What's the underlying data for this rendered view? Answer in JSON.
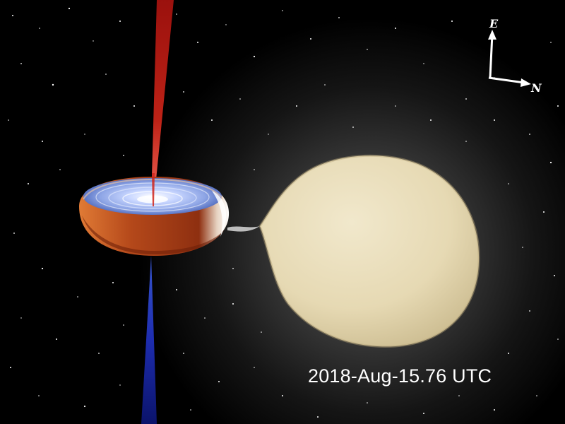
{
  "compass": {
    "east_label": "E",
    "north_label": "N"
  },
  "caption": {
    "timestamp": "2018-Aug-15.76 UTC"
  },
  "scene": {
    "objects": [
      "accretion-disk",
      "companion-star",
      "jet-redshifted",
      "jet-blueshifted",
      "mass-transfer-stream",
      "star-field"
    ]
  },
  "colors": {
    "background": "#000000",
    "glow": "#4a4a4a",
    "star": "#e9dfbf",
    "disk_rim": "#b8501a",
    "disk_inner": "#9fb3ea",
    "jet_red": "#c41a12",
    "jet_blue": "#1a2ec0",
    "text": "#ffffff"
  }
}
